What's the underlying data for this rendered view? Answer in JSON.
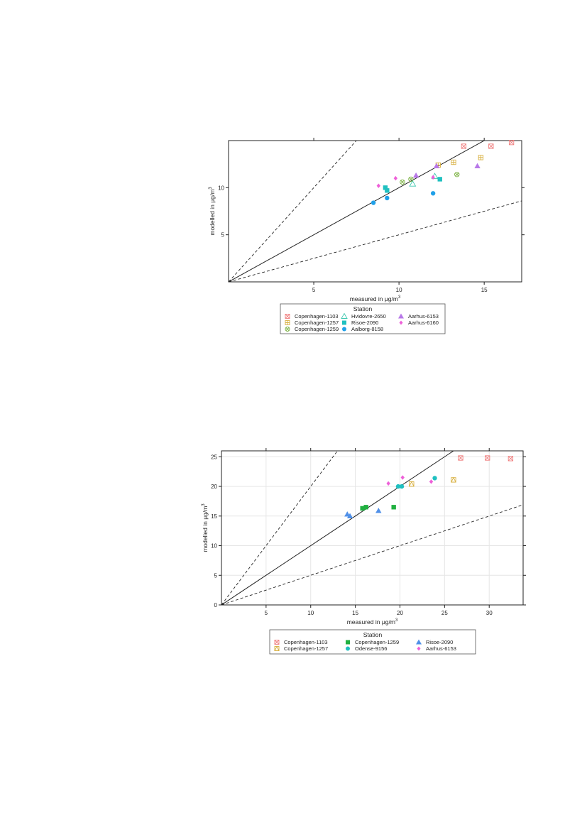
{
  "chart_data": [
    {
      "type": "scatter",
      "xlabel": "measured in μg/m",
      "xlabel_sup": "3",
      "ylabel": "modelled in μg/m",
      "ylabel_sup": "3",
      "xlim": [
        0,
        17.2
      ],
      "ylim": [
        0,
        15
      ],
      "xticks": [
        5,
        10,
        15
      ],
      "yticks": [
        5,
        10
      ],
      "grid": false,
      "reference_lines": [
        {
          "slope": 1,
          "style": "solid"
        },
        {
          "slope": 2,
          "style": "dashed"
        },
        {
          "slope": 0.5,
          "style": "dashed"
        }
      ],
      "legend_title": "Station",
      "legend_position": "bottom",
      "series": [
        {
          "name": "Copenhagen-1103",
          "color": "#f08080",
          "marker": "x-square",
          "points": [
            [
              13.8,
              14.4
            ],
            [
              15.4,
              14.4
            ],
            [
              16.6,
              14.8
            ]
          ]
        },
        {
          "name": "Copenhagen-1257",
          "color": "#d8b040",
          "marker": "plus-square",
          "points": [
            [
              12.3,
              12.4
            ],
            [
              13.2,
              12.7
            ],
            [
              14.8,
              13.2
            ]
          ]
        },
        {
          "name": "Copenhagen-1259",
          "color": "#7ab040",
          "marker": "x-circle",
          "points": [
            [
              10.2,
              10.6
            ],
            [
              10.7,
              10.9
            ],
            [
              13.4,
              11.4
            ]
          ]
        },
        {
          "name": "Hvidovre-2650",
          "color": "#40c8b0",
          "marker": "triangle-open",
          "points": [
            [
              10.8,
              10.4
            ],
            [
              12.1,
              11.2
            ]
          ]
        },
        {
          "name": "Risoe-2090",
          "color": "#20c0c0",
          "marker": "square",
          "points": [
            [
              9.2,
              10.0
            ],
            [
              9.3,
              9.7
            ],
            [
              12.4,
              10.9
            ]
          ]
        },
        {
          "name": "Aalborg-8158",
          "color": "#20a0e8",
          "marker": "circle",
          "points": [
            [
              8.5,
              8.4
            ],
            [
              9.3,
              8.9
            ],
            [
              12.0,
              9.4
            ]
          ]
        },
        {
          "name": "Aarhus-6153",
          "color": "#b878e8",
          "marker": "triangle",
          "points": [
            [
              11.0,
              11.3
            ],
            [
              12.2,
              12.3
            ],
            [
              14.6,
              12.3
            ]
          ]
        },
        {
          "name": "Aarhus-6160",
          "color": "#ee60d8",
          "marker": "diamond",
          "points": [
            [
              8.8,
              10.2
            ],
            [
              9.8,
              11.0
            ],
            [
              12.0,
              11.1
            ]
          ]
        }
      ]
    },
    {
      "type": "scatter",
      "xlabel": "measured in μg/m",
      "xlabel_sup": "3",
      "ylabel": "modelled in μg/m",
      "ylabel_sup": "3",
      "xlim": [
        0,
        33.8
      ],
      "ylim": [
        0,
        26
      ],
      "xticks": [
        5,
        10,
        15,
        20,
        25,
        30
      ],
      "yticks": [
        0,
        5,
        10,
        15,
        20,
        25
      ],
      "grid": true,
      "reference_lines": [
        {
          "slope": 1,
          "style": "solid"
        },
        {
          "slope": 2,
          "style": "dashed"
        },
        {
          "slope": 0.5,
          "style": "dashed"
        }
      ],
      "legend_title": "Station",
      "legend_position": "bottom",
      "series": [
        {
          "name": "Copenhagen-1103",
          "color": "#f08080",
          "marker": "x-square",
          "points": [
            [
              26.8,
              24.8
            ],
            [
              29.8,
              24.8
            ],
            [
              32.4,
              24.7
            ]
          ]
        },
        {
          "name": "Copenhagen-1257",
          "color": "#d8b040",
          "marker": "triangle-square",
          "points": [
            [
              21.3,
              20.4
            ],
            [
              26.0,
              21.1
            ]
          ]
        },
        {
          "name": "Copenhagen-1259",
          "color": "#20b040",
          "marker": "square",
          "points": [
            [
              15.8,
              16.3
            ],
            [
              16.2,
              16.5
            ],
            [
              19.3,
              16.5
            ]
          ]
        },
        {
          "name": "Odense-9156",
          "color": "#20c0c0",
          "marker": "circle",
          "points": [
            [
              19.8,
              20.0
            ],
            [
              20.2,
              20.0
            ],
            [
              23.9,
              21.4
            ]
          ]
        },
        {
          "name": "Risoe-2090",
          "color": "#5090e8",
          "marker": "triangle",
          "points": [
            [
              14.1,
              15.3
            ],
            [
              14.4,
              15.0
            ],
            [
              17.6,
              15.9
            ]
          ]
        },
        {
          "name": "Aarhus-6153",
          "color": "#ee60d8",
          "marker": "diamond",
          "points": [
            [
              18.7,
              20.5
            ],
            [
              20.3,
              21.5
            ],
            [
              23.5,
              20.8
            ]
          ]
        }
      ]
    }
  ]
}
